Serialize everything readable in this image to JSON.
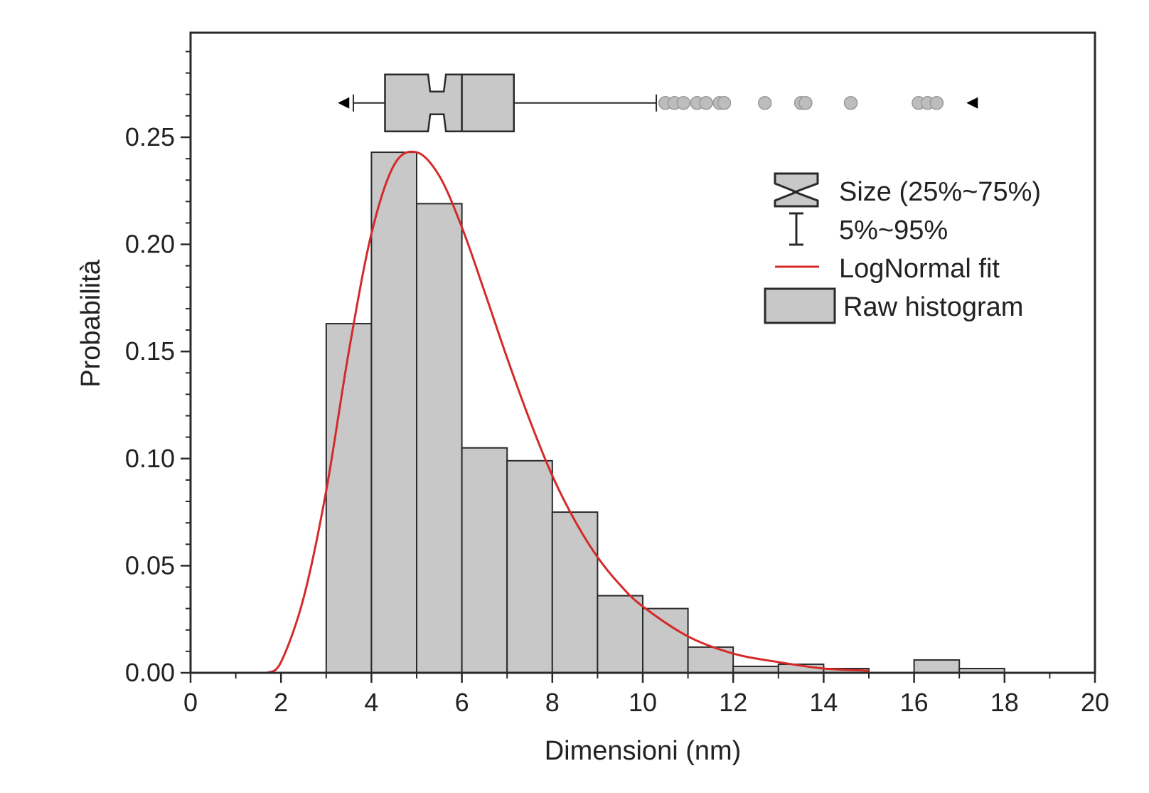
{
  "chart_data": {
    "type": "bar",
    "xlabel": "Dimensioni (nm)",
    "ylabel": "Probabilità",
    "xlim": [
      0,
      20
    ],
    "ylim": [
      0,
      0.3
    ],
    "x_ticks": [
      "0",
      "2",
      "4",
      "6",
      "8",
      "10",
      "12",
      "14",
      "16",
      "18",
      "20"
    ],
    "y_ticks": [
      "0.00",
      "0.05",
      "0.10",
      "0.15",
      "0.20",
      "0.25"
    ],
    "grid": false,
    "legend_position": "top-right",
    "series": [
      {
        "name": "Raw histogram",
        "type": "histogram",
        "bin_width": 1,
        "bins": [
          {
            "x0": 3,
            "x1": 4,
            "y": 0.163
          },
          {
            "x0": 4,
            "x1": 5,
            "y": 0.243
          },
          {
            "x0": 5,
            "x1": 6,
            "y": 0.219
          },
          {
            "x0": 6,
            "x1": 7,
            "y": 0.105
          },
          {
            "x0": 7,
            "x1": 8,
            "y": 0.099
          },
          {
            "x0": 8,
            "x1": 9,
            "y": 0.075
          },
          {
            "x0": 9,
            "x1": 10,
            "y": 0.036
          },
          {
            "x0": 10,
            "x1": 11,
            "y": 0.03
          },
          {
            "x0": 11,
            "x1": 12,
            "y": 0.012
          },
          {
            "x0": 12,
            "x1": 13,
            "y": 0.003
          },
          {
            "x0": 13,
            "x1": 14,
            "y": 0.004
          },
          {
            "x0": 14,
            "x1": 15,
            "y": 0.002
          },
          {
            "x0": 16,
            "x1": 17,
            "y": 0.006
          },
          {
            "x0": 17,
            "x1": 18,
            "y": 0.002
          }
        ]
      },
      {
        "name": "LogNormal fit",
        "type": "line",
        "color": "#d42a2a",
        "x": [
          1.7,
          2.0,
          2.5,
          3.0,
          3.5,
          4.0,
          4.5,
          5.0,
          5.5,
          6.0,
          6.5,
          7.0,
          7.5,
          8.0,
          8.5,
          9.0,
          9.5,
          10.0,
          11.0,
          12.0,
          13.0,
          14.0,
          15.0
        ],
        "y": [
          0.0,
          0.005,
          0.035,
          0.085,
          0.15,
          0.205,
          0.237,
          0.243,
          0.232,
          0.208,
          0.178,
          0.147,
          0.118,
          0.092,
          0.071,
          0.054,
          0.041,
          0.031,
          0.017,
          0.009,
          0.005,
          0.002,
          0.001
        ]
      },
      {
        "name": "Size (25%~75%)",
        "type": "notched-box",
        "y_position": 0.266,
        "q1": 4.3,
        "median": 6.0,
        "q3": 7.15,
        "notch_low": 5.3,
        "notch_high": 5.6,
        "min_marker": 3.4,
        "max_marker": 17.3,
        "whisker_label": "5%~95%",
        "whisker_low": 3.6,
        "whisker_high": 10.3,
        "outliers": [
          10.5,
          10.7,
          10.9,
          11.2,
          11.4,
          11.7,
          11.8,
          12.7,
          13.5,
          13.6,
          14.6,
          16.1,
          16.3,
          16.5
        ]
      }
    ]
  },
  "legend": {
    "box_label": "Size (25%~75%)",
    "whisker_label": "5%~95%",
    "fit_label": "LogNormal fit",
    "hist_label": "Raw histogram"
  },
  "colors": {
    "bar_fill": "#c8c8c8",
    "outline": "#2a2a2a",
    "fit_line": "#d42a2a",
    "outlier_fill": "#bdbdbd"
  }
}
